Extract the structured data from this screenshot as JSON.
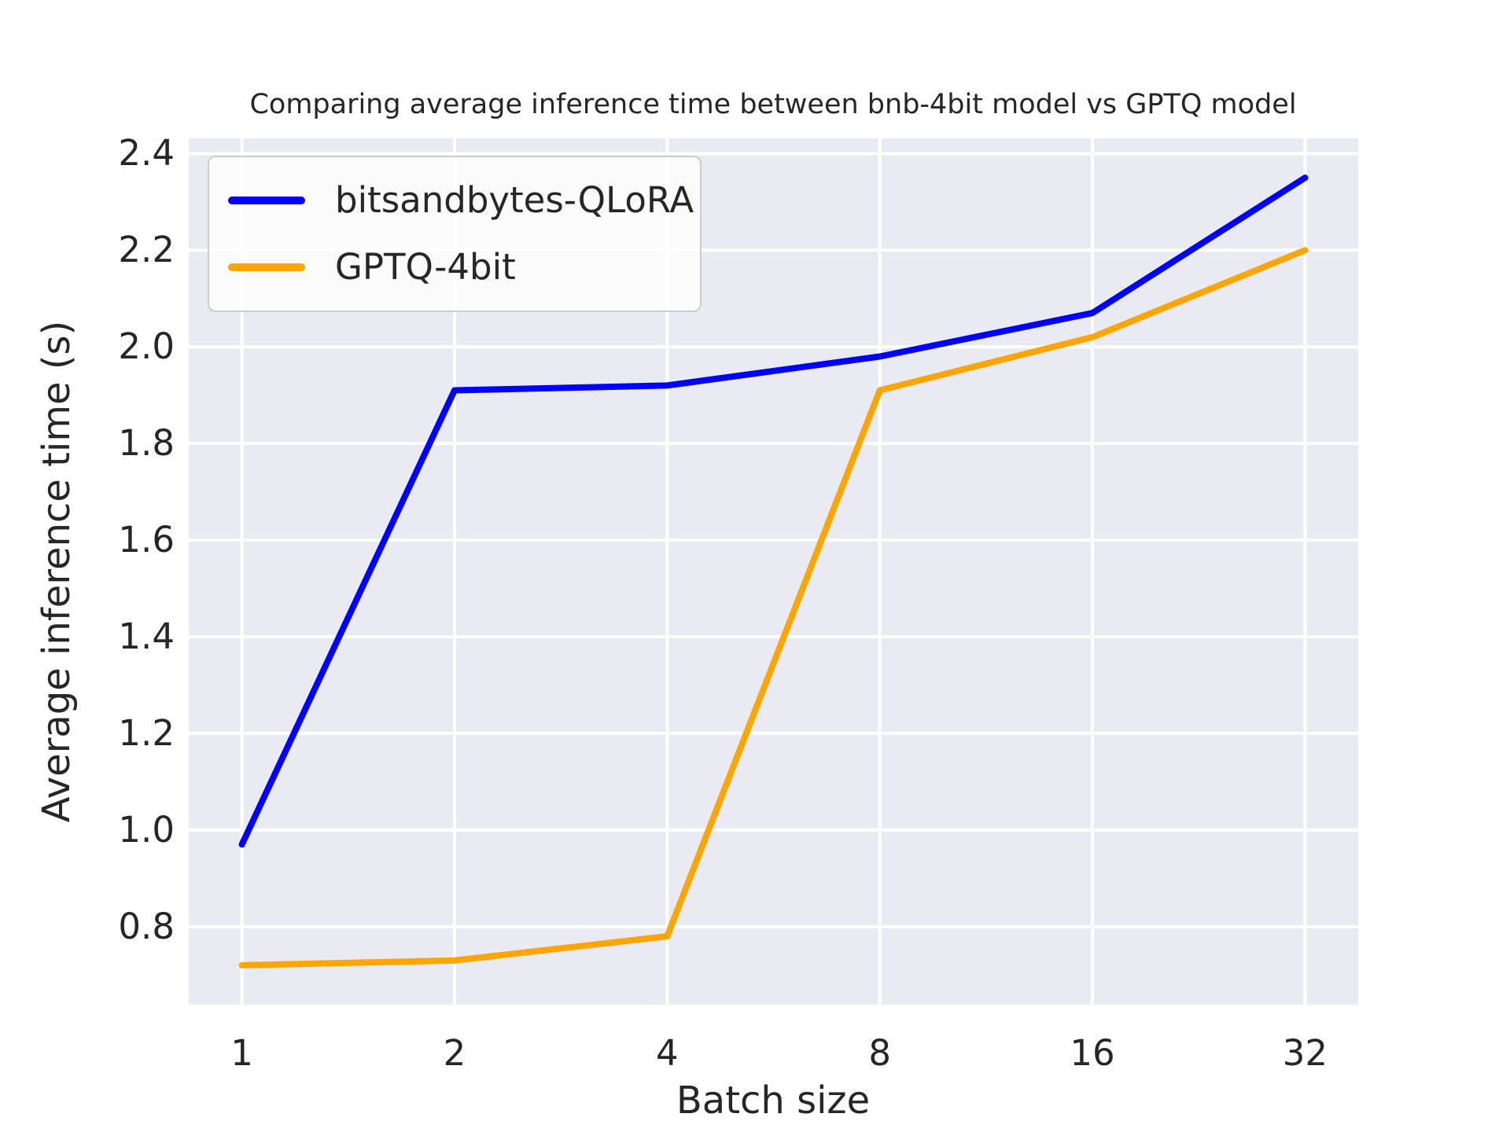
{
  "chart_data": {
    "type": "line",
    "title": "Comparing average inference time between bnb-4bit model vs GPTQ model",
    "xlabel": "Batch size",
    "ylabel": "Average inference time (s)",
    "x": [
      1,
      2,
      4,
      8,
      16,
      32
    ],
    "x_scale": "log2",
    "x_tick_labels": [
      "1",
      "2",
      "4",
      "8",
      "16",
      "32"
    ],
    "y_ticks": [
      0.8,
      1.0,
      1.2,
      1.4,
      1.6,
      1.8,
      2.0,
      2.2,
      2.4
    ],
    "y_tick_labels": [
      "0.8",
      "1.0",
      "1.2",
      "1.4",
      "1.6",
      "1.8",
      "2.0",
      "2.2",
      "2.4"
    ],
    "ylim": [
      0.6385,
      2.4315
    ],
    "xlim_log2": [
      -0.25,
      5.25
    ],
    "grid": true,
    "legend_position": "upper left",
    "series": [
      {
        "name": "bitsandbytes-QLoRA",
        "color": "#0000FF",
        "values": [
          0.97,
          1.91,
          1.92,
          1.98,
          2.07,
          2.35
        ]
      },
      {
        "name": "GPTQ-4bit",
        "color": "#FFA500",
        "values": [
          0.72,
          0.73,
          0.78,
          1.91,
          2.02,
          2.2
        ]
      }
    ],
    "colors": {
      "figure_bg": "#FFFFFF",
      "plot_bg": "#EAEAF2",
      "grid": "#FFFFFF",
      "text": "#262626",
      "legend_border": "#CCCCCC"
    }
  }
}
